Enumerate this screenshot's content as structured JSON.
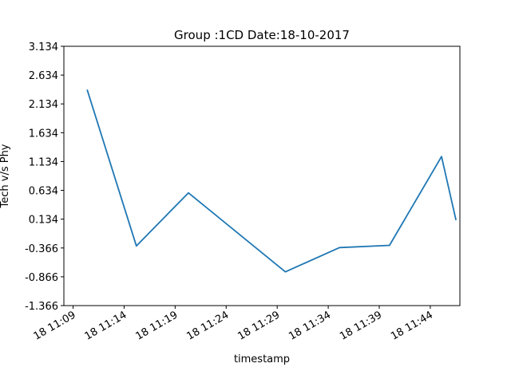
{
  "chart_data": {
    "type": "line",
    "title": "Group :1CD Date:18-10-2017",
    "xlabel": "timestamp",
    "ylabel": "Tech v/s Phy",
    "x_unit": "minutes since 11:00 on the 18th",
    "xlim": [
      "18 11:08.1",
      "18 11:46.9"
    ],
    "ylim": [
      -1.366,
      3.134
    ],
    "x_ticks": [
      "18 11:09",
      "18 11:14",
      "18 11:19",
      "18 11:24",
      "18 11:29",
      "18 11:34",
      "18 11:39",
      "18 11:44"
    ],
    "y_ticks": [
      "3.134",
      "2.634",
      "2.134",
      "1.634",
      "1.134",
      "0.634",
      "0.134",
      "-0.366",
      "-0.866",
      "-1.366"
    ],
    "grid": false,
    "series": [
      {
        "color": "#1f77b4",
        "points": [
          {
            "x": "18 11:10.4",
            "y": 2.37
          },
          {
            "x": "18 11:15.2",
            "y": -0.33
          },
          {
            "x": "18 11:20.3",
            "y": 0.59
          },
          {
            "x": "18 11:29.8",
            "y": -0.78
          },
          {
            "x": "18 11:35.1",
            "y": -0.36
          },
          {
            "x": "18 11:40.0",
            "y": -0.32
          },
          {
            "x": "18 11:45.1",
            "y": 1.22
          },
          {
            "x": "18 11:46.5",
            "y": 0.13
          }
        ]
      }
    ]
  }
}
